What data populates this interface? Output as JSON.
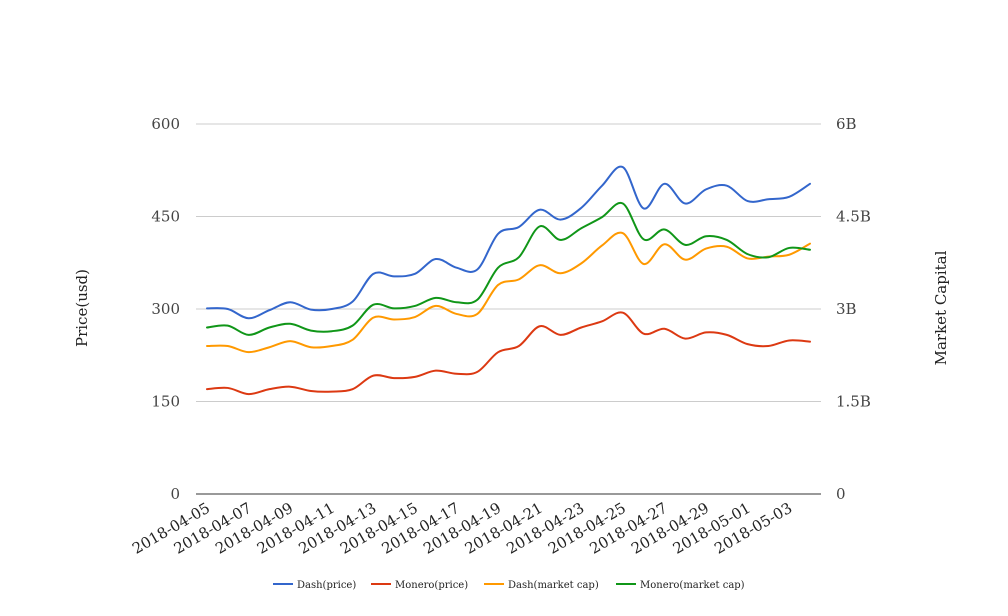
{
  "chart_data": {
    "type": "line",
    "x": [
      "2018-04-05",
      "2018-04-06",
      "2018-04-07",
      "2018-04-08",
      "2018-04-09",
      "2018-04-10",
      "2018-04-11",
      "2018-04-12",
      "2018-04-13",
      "2018-04-14",
      "2018-04-15",
      "2018-04-16",
      "2018-04-17",
      "2018-04-18",
      "2018-04-19",
      "2018-04-20",
      "2018-04-21",
      "2018-04-22",
      "2018-04-23",
      "2018-04-24",
      "2018-04-25",
      "2018-04-26",
      "2018-04-27",
      "2018-04-28",
      "2018-04-29",
      "2018-04-30",
      "2018-05-01",
      "2018-05-02",
      "2018-05-03",
      "2018-05-04"
    ],
    "x_tick_labels": [
      "2018-04-05",
      "2018-04-07",
      "2018-04-09",
      "2018-04-11",
      "2018-04-13",
      "2018-04-15",
      "2018-04-17",
      "2018-04-19",
      "2018-04-21",
      "2018-04-23",
      "2018-04-25",
      "2018-04-27",
      "2018-04-29",
      "2018-05-01",
      "2018-05-03"
    ],
    "y_left": {
      "label": "Price(usd)",
      "ticks": [
        "0",
        "150",
        "300",
        "450",
        "600"
      ],
      "ylim": [
        0,
        600
      ]
    },
    "y_right": {
      "label": "Market Capital",
      "ticks": [
        "0",
        "1.5B",
        "3B",
        "4.5B",
        "6B"
      ],
      "ylim": [
        0,
        6000000000
      ]
    },
    "grid": true,
    "legend_position": "bottom",
    "series": [
      {
        "name": "Dash(price)",
        "axis": "left",
        "color": "#3366cc",
        "values": [
          301,
          300,
          285,
          298,
          311,
          299,
          300,
          312,
          357,
          353,
          357,
          381,
          367,
          364,
          422,
          433,
          461,
          445,
          464,
          500,
          530,
          463,
          503,
          471,
          494,
          500,
          475,
          478,
          482,
          503
        ]
      },
      {
        "name": "Monero(price)",
        "axis": "left",
        "color": "#dc3912",
        "values": [
          170,
          172,
          162,
          170,
          174,
          167,
          166,
          170,
          192,
          188,
          190,
          200,
          195,
          198,
          230,
          240,
          272,
          258,
          270,
          280,
          294,
          260,
          268,
          252,
          262,
          258,
          243,
          240,
          249,
          247
        ]
      },
      {
        "name": "Dash(market cap)",
        "axis": "right",
        "color": "#ff9900",
        "values": [
          2400000000,
          2400000000,
          2300000000,
          2380000000,
          2480000000,
          2380000000,
          2400000000,
          2500000000,
          2860000000,
          2830000000,
          2870000000,
          3050000000,
          2920000000,
          2920000000,
          3390000000,
          3480000000,
          3710000000,
          3580000000,
          3740000000,
          4030000000,
          4230000000,
          3730000000,
          4050000000,
          3800000000,
          3980000000,
          4010000000,
          3820000000,
          3850000000,
          3880000000,
          4060000000
        ]
      },
      {
        "name": "Monero(market cap)",
        "axis": "right",
        "color": "#109618",
        "values": [
          2700000000,
          2730000000,
          2580000000,
          2700000000,
          2760000000,
          2650000000,
          2640000000,
          2730000000,
          3070000000,
          3010000000,
          3050000000,
          3180000000,
          3110000000,
          3150000000,
          3670000000,
          3840000000,
          4340000000,
          4120000000,
          4310000000,
          4490000000,
          4710000000,
          4130000000,
          4290000000,
          4040000000,
          4180000000,
          4120000000,
          3890000000,
          3840000000,
          3990000000,
          3960000000
        ]
      }
    ]
  }
}
